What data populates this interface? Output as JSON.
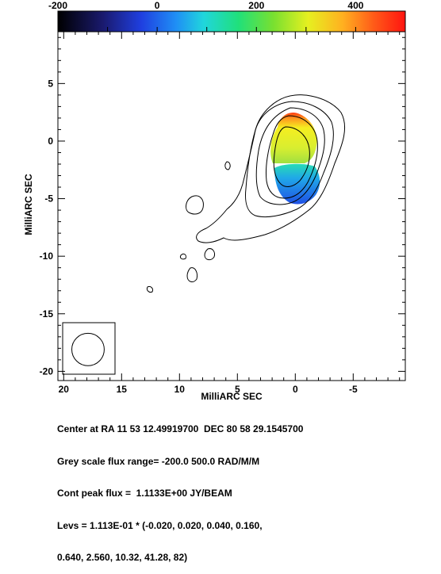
{
  "chart_data": {
    "type": "contour",
    "colorbar": {
      "ticks": [
        "-200",
        "0",
        "200",
        "400"
      ],
      "range": [
        -200,
        500
      ]
    },
    "xlabel": "MilliARC SEC",
    "ylabel": "MilliARC SEC",
    "xlim": [
      20.5,
      -9.5
    ],
    "ylim": [
      -20.8,
      9.5
    ],
    "xticks": [
      "20",
      "15",
      "10",
      "5",
      "0",
      "-5"
    ],
    "yticks": [
      "5",
      "0",
      "-5",
      "-10",
      "-15",
      "-20"
    ],
    "beam": {
      "center_x": 17.9,
      "center_y": -18.1,
      "radius": 1.4
    }
  },
  "caption": {
    "line1": "Center at RA 11 53 12.49919700  DEC 80 58 29.1545700",
    "line2": "Grey scale flux range= -200.0 500.0 RAD/M/M",
    "line3": "Cont peak flux =  1.1133E+00 JY/BEAM",
    "line4": "Levs = 1.113E-01 * (-0.020, 0.020, 0.040, 0.160,",
    "line5": "0.640, 2.560, 10.32, 41.28, 82)"
  }
}
